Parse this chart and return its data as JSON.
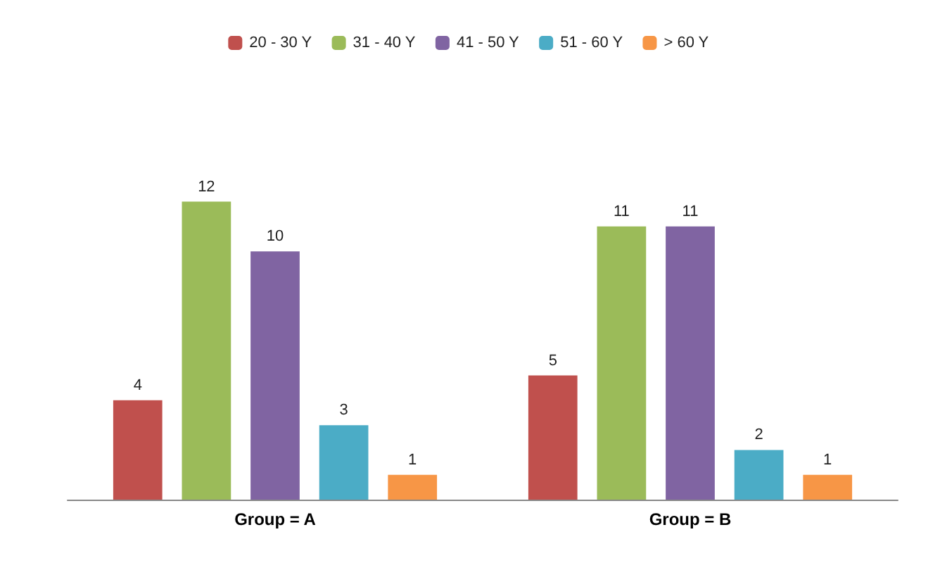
{
  "chart_data": {
    "type": "bar",
    "categories": [
      "Group = A",
      "Group = B"
    ],
    "series": [
      {
        "name": "20 - 30 Y",
        "color": "#c0504d",
        "values": [
          4,
          5
        ]
      },
      {
        "name": "31 - 40 Y",
        "color": "#9bbb59",
        "values": [
          12,
          11
        ]
      },
      {
        "name": "41 - 50 Y",
        "color": "#8064a2",
        "values": [
          10,
          11
        ]
      },
      {
        "name": "51 - 60 Y",
        "color": "#4bacc6",
        "values": [
          3,
          2
        ]
      },
      {
        "name": "> 60 Y",
        "color": "#f79646",
        "values": [
          1,
          1
        ]
      }
    ],
    "data_labels": true,
    "legend": "top",
    "tick_labels": "x"
  }
}
